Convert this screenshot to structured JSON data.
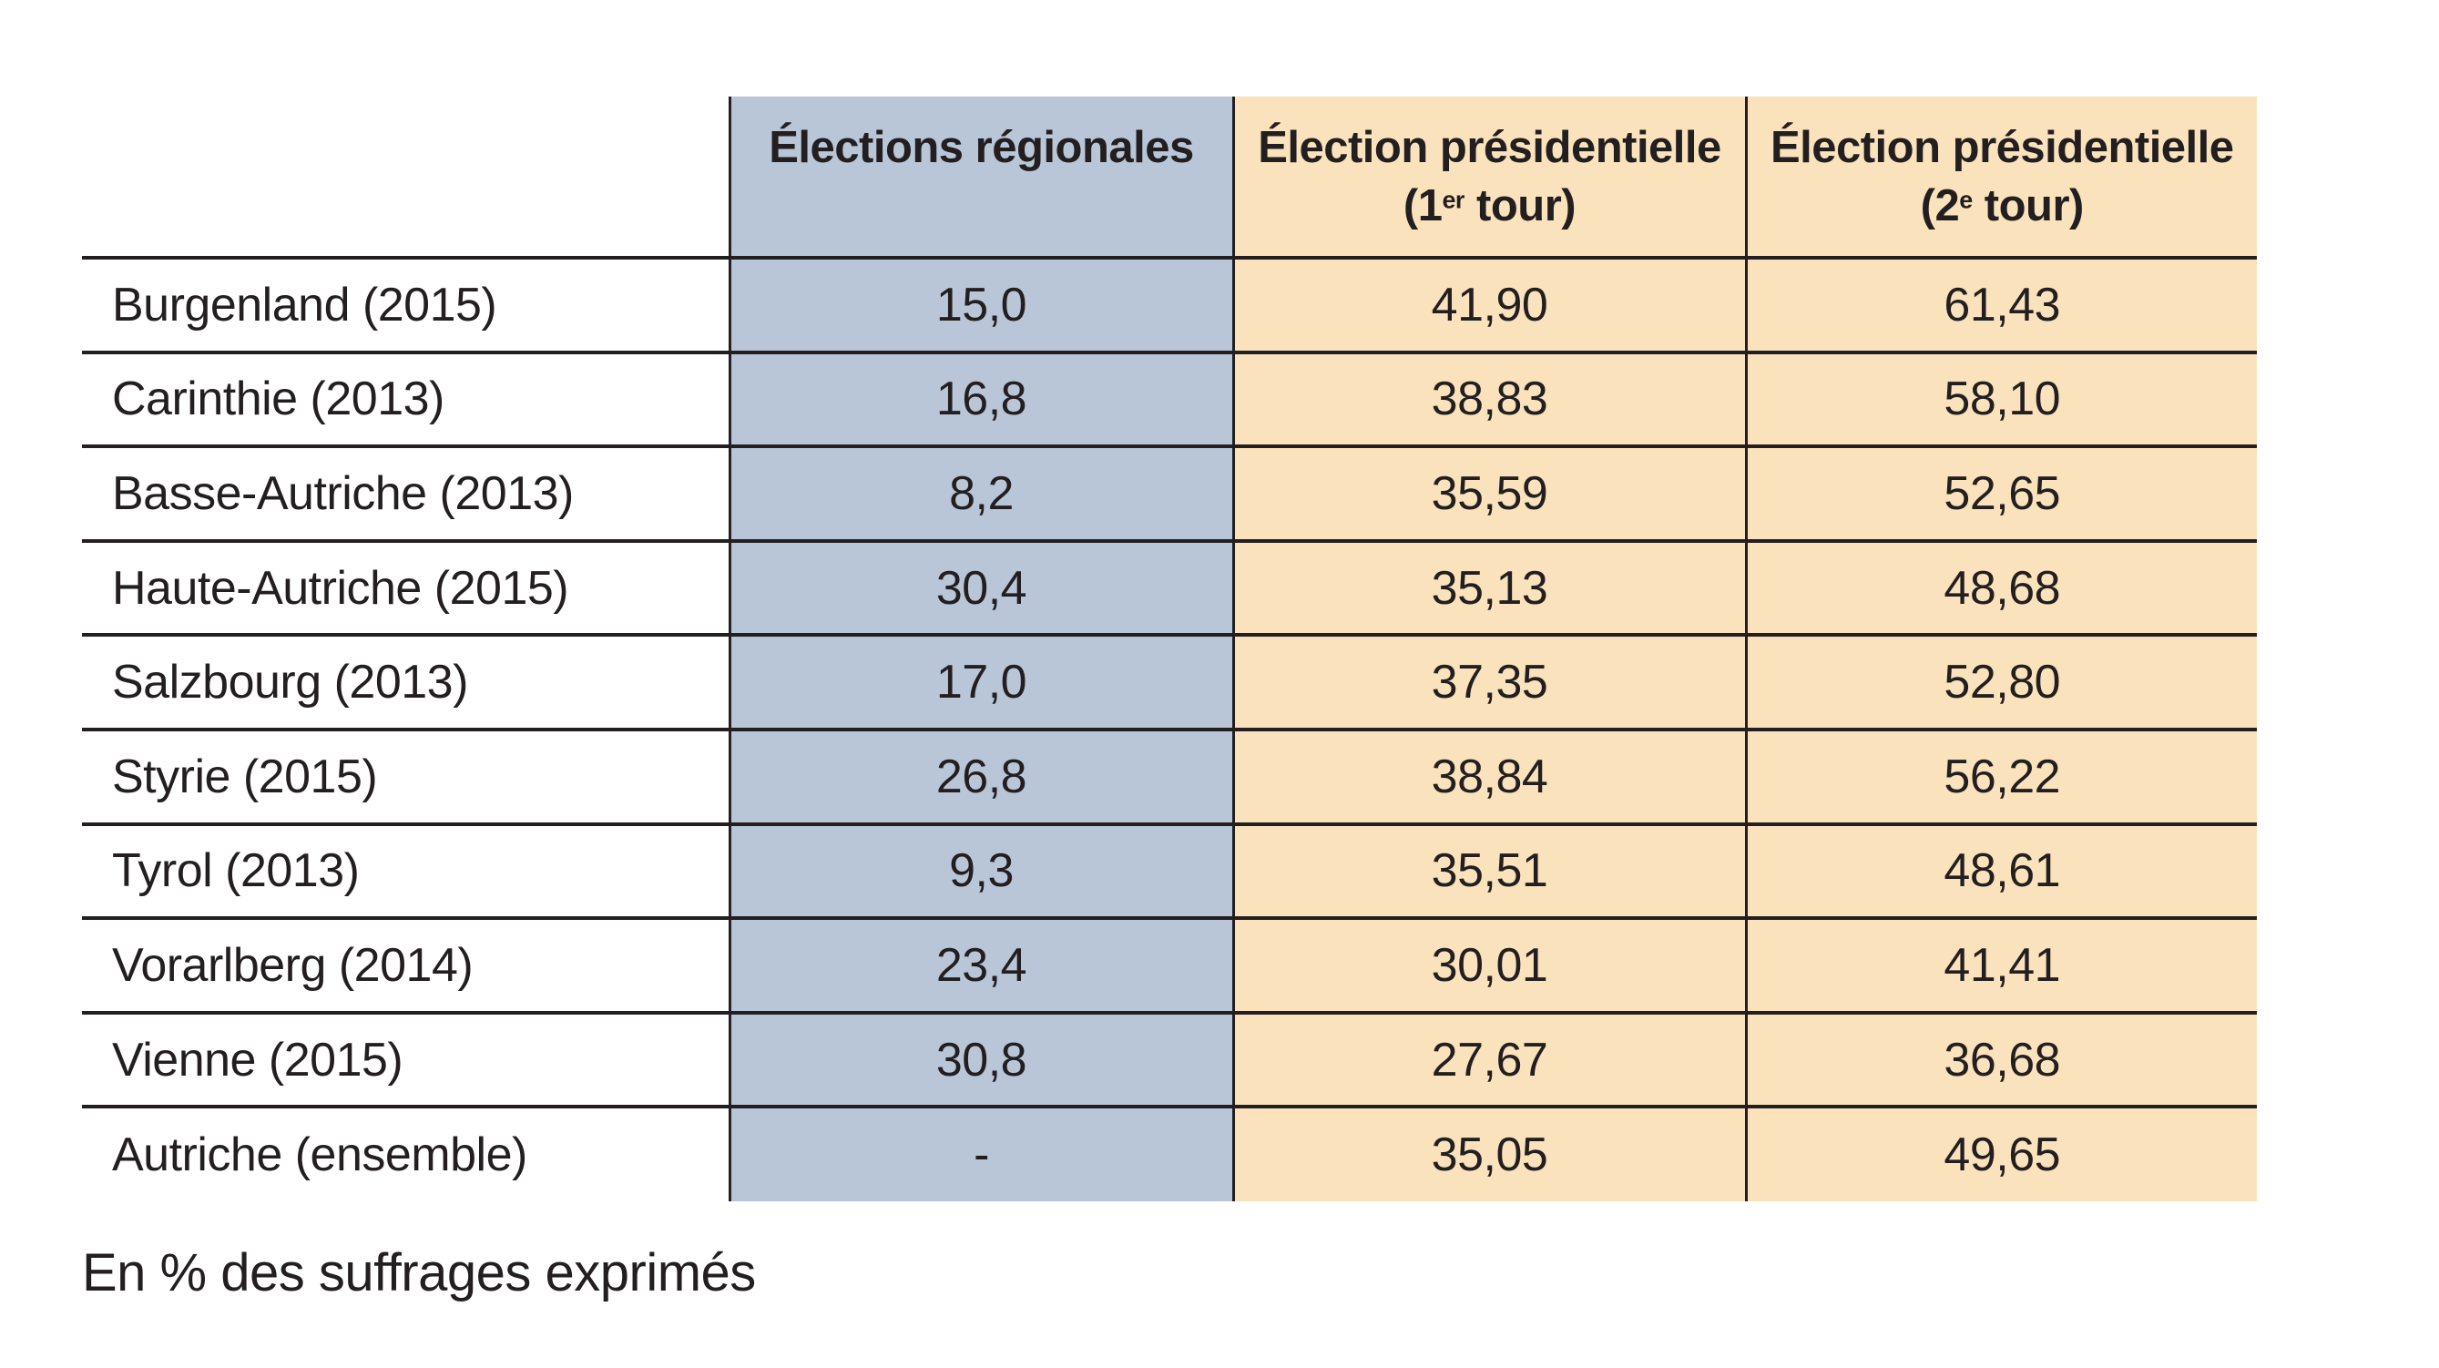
{
  "colors": {
    "blue_column": "#b8c6d8",
    "orange_column": "#fae3bc",
    "ink": "#231f20",
    "background": "#ffffff"
  },
  "table": {
    "columns": {
      "region": {
        "title": ""
      },
      "regional": {
        "title": "Élections régionales"
      },
      "pres1": {
        "title": "Élection présidentielle",
        "sub_open": "(1",
        "sub_sup": "er",
        "sub_close": " tour)"
      },
      "pres2": {
        "title": "Élection présidentielle",
        "sub_open": "(2",
        "sub_sup": "e",
        "sub_close": " tour)"
      }
    },
    "rows": [
      {
        "region": "Burgenland (2015)",
        "regional": "15,0",
        "pres1": "41,90",
        "pres2": "61,43"
      },
      {
        "region": "Carinthie (2013)",
        "regional": "16,8",
        "pres1": "38,83",
        "pres2": "58,10"
      },
      {
        "region": "Basse-Autriche (2013)",
        "regional": "8,2",
        "pres1": "35,59",
        "pres2": "52,65"
      },
      {
        "region": "Haute-Autriche (2015)",
        "regional": "30,4",
        "pres1": "35,13",
        "pres2": "48,68"
      },
      {
        "region": "Salzbourg (2013)",
        "regional": "17,0",
        "pres1": "37,35",
        "pres2": "52,80"
      },
      {
        "region": "Styrie (2015)",
        "regional": "26,8",
        "pres1": "38,84",
        "pres2": "56,22"
      },
      {
        "region": "Tyrol (2013)",
        "regional": "9,3",
        "pres1": "35,51",
        "pres2": "48,61"
      },
      {
        "region": "Vorarlberg (2014)",
        "regional": "23,4",
        "pres1": "30,01",
        "pres2": "41,41"
      },
      {
        "region": "Vienne (2015)",
        "regional": "30,8",
        "pres1": "27,67",
        "pres2": "36,68"
      },
      {
        "region": "Autriche (ensemble)",
        "regional": "-",
        "pres1": "35,05",
        "pres2": "49,65"
      }
    ]
  },
  "footnote": "En % des suffrages exprimés"
}
